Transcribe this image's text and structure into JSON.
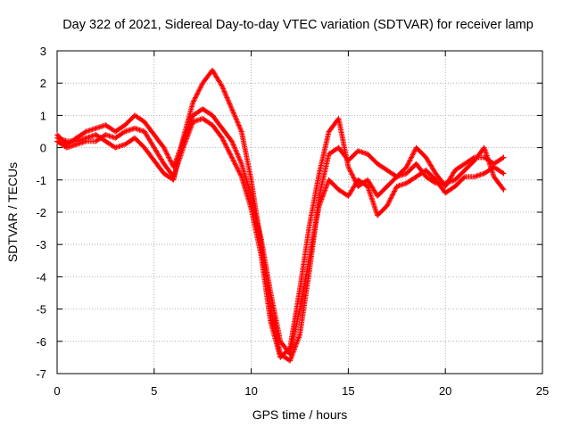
{
  "chart_data": {
    "type": "scatter",
    "title": "Day 322 of 2021, Sidereal Day-to-day VTEC variation (SDTVAR) for receiver lamp",
    "xlabel": "GPS time / hours",
    "ylabel": "SDTVAR / TECUs",
    "xlim": [
      0,
      25
    ],
    "ylim": [
      -7,
      3
    ],
    "xticks": [
      "0",
      "5",
      "10",
      "15",
      "20",
      "25"
    ],
    "yticks": [
      "3",
      "2",
      "1",
      "0",
      "-1",
      "-2",
      "-3",
      "-4",
      "-5",
      "-6",
      "-7"
    ],
    "grid": true,
    "marker": "+",
    "series_color": "#ff0000",
    "series": [
      {
        "x": [
          0.0,
          0.5,
          1.0,
          1.5,
          2.0,
          2.5,
          3.0,
          3.5,
          4.0,
          4.5,
          5.0,
          5.5,
          6.0,
          6.5,
          7.0,
          7.5,
          8.0,
          8.5,
          9.0,
          9.5,
          10.0,
          10.5,
          11.0,
          11.5,
          12.0,
          12.5,
          13.0,
          13.5,
          14.0,
          14.5,
          15.0,
          15.5,
          16.0,
          16.5,
          17.0,
          17.5,
          18.0,
          18.5,
          19.0,
          19.5,
          20.0,
          20.5,
          21.0,
          21.5,
          22.0,
          22.5,
          23.0
        ],
        "y": [
          0.3,
          0.2,
          0.2,
          0.3,
          0.4,
          0.2,
          0.0,
          0.1,
          0.3,
          0.0,
          -0.4,
          -0.8,
          -1.0,
          0.3,
          1.4,
          2.0,
          2.4,
          1.9,
          1.2,
          0.5,
          -1.0,
          -3.0,
          -5.0,
          -6.4,
          -6.6,
          -5.8,
          -3.8,
          -1.5,
          -0.2,
          0.0,
          -0.4,
          -0.1,
          -0.2,
          -0.5,
          -0.7,
          -0.9,
          -0.6,
          0.0,
          -0.3,
          -0.8,
          -1.2,
          -0.7,
          -0.5,
          -0.3,
          -0.3,
          -0.5,
          -0.3
        ]
      },
      {
        "x": [
          0.0,
          0.5,
          1.0,
          1.5,
          2.0,
          2.5,
          3.0,
          3.5,
          4.0,
          4.5,
          5.0,
          5.5,
          6.0,
          6.5,
          7.0,
          7.5,
          8.0,
          8.5,
          9.0,
          9.5,
          10.0,
          10.5,
          11.0,
          11.5,
          12.0,
          12.5,
          13.0,
          13.5,
          14.0,
          14.5,
          15.0,
          15.5,
          16.0,
          16.5,
          17.0,
          17.5,
          18.0,
          18.5,
          19.0,
          19.5,
          20.0,
          20.5,
          21.0,
          21.5,
          22.0,
          22.5,
          23.0
        ],
        "y": [
          0.4,
          0.1,
          0.3,
          0.5,
          0.6,
          0.7,
          0.5,
          0.7,
          1.0,
          0.8,
          0.4,
          0.0,
          -0.6,
          0.2,
          1.0,
          1.2,
          1.0,
          0.6,
          0.2,
          -0.5,
          -1.5,
          -2.8,
          -4.5,
          -6.0,
          -6.4,
          -5.0,
          -3.4,
          -1.8,
          -1.0,
          -1.3,
          -1.5,
          -1.0,
          -1.2,
          -2.1,
          -1.8,
          -1.2,
          -1.1,
          -0.9,
          -0.7,
          -1.0,
          -1.4,
          -1.2,
          -0.9,
          -0.9,
          -0.8,
          -0.6,
          -0.8
        ]
      },
      {
        "x": [
          0.0,
          0.5,
          1.0,
          1.5,
          2.0,
          2.5,
          3.0,
          3.5,
          4.0,
          4.5,
          5.0,
          5.5,
          6.0,
          6.5,
          7.0,
          7.5,
          8.0,
          8.5,
          9.0,
          9.5,
          10.0,
          10.5,
          11.0,
          11.5,
          12.0,
          12.5,
          13.0,
          13.5,
          14.0,
          14.5,
          15.0,
          15.5,
          16.0,
          16.5,
          17.0,
          17.5,
          18.0,
          18.5,
          19.0,
          19.5,
          20.0,
          20.5,
          21.0,
          21.5,
          22.0,
          22.5,
          23.0
        ],
        "y": [
          0.2,
          0.0,
          0.1,
          0.2,
          0.2,
          0.4,
          0.3,
          0.5,
          0.6,
          0.5,
          0.0,
          -0.5,
          -0.9,
          0.0,
          0.8,
          0.9,
          0.7,
          0.3,
          -0.3,
          -0.9,
          -1.9,
          -3.3,
          -5.4,
          -6.5,
          -6.2,
          -4.4,
          -2.4,
          -0.8,
          0.5,
          0.9,
          -0.6,
          -1.2,
          -1.0,
          -1.5,
          -1.2,
          -0.9,
          -0.8,
          -0.5,
          -0.9,
          -1.1,
          -1.1,
          -1.0,
          -0.7,
          -0.4,
          0.0,
          -0.9,
          -1.3
        ]
      }
    ]
  }
}
